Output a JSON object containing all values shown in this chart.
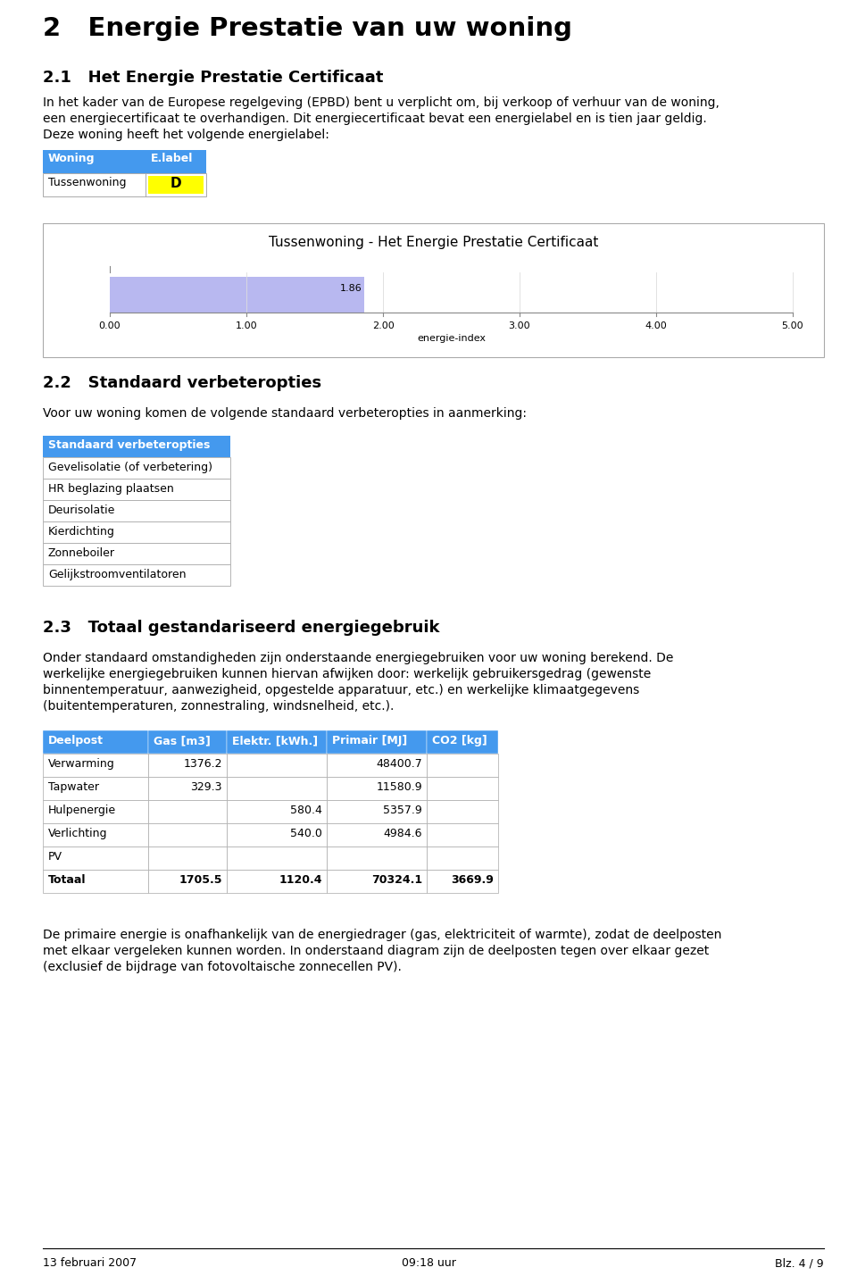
{
  "page_title": "2   Energie Prestatie van uw woning",
  "section1_title": "2.1   Het Energie Prestatie Certificaat",
  "section1_body": "In het kader van de Europese regelgeving (EPBD) bent u verplicht om, bij verkoop of verhuur van de woning,\neen energiecertificaat te overhandigen. Dit energiecertificaat bevat een energielabel en is tien jaar geldig.\nDeze woning heeft het volgende energielabel:",
  "table1_col1_header": "Woning",
  "table1_col2_header": "E.label",
  "table1_row1_col1": "Tussenwoning",
  "table1_row1_col2": "D",
  "chart_title": "Tussenwoning - Het Energie Prestatie Certificaat",
  "bar_value": 1.86,
  "bar_color": "#b8b8f0",
  "xaxis_ticks": [
    0.0,
    1.0,
    2.0,
    3.0,
    4.0,
    5.0
  ],
  "xaxis_label": "energie-index",
  "section2_title": "2.2   Standaard verbeteropties",
  "section2_body": "Voor uw woning komen de volgende standaard verbeteropties in aanmerking:",
  "verbeter_header": "Standaard verbeteropties",
  "verbeter_rows": [
    "Gevelisolatie (of verbetering)",
    "HR beglazing plaatsen",
    "Deurisolatie",
    "Kierdichting",
    "Zonneboiler",
    "Gelijkstroomventilatoren"
  ],
  "section3_title": "2.3   Totaal gestandariseerd energiegebruik",
  "section3_body1_line1": "Onder standaard omstandigheden zijn onderstaande energiegebruiken voor uw woning berekend. De",
  "section3_body1_line2": "werkelijke energiegebruiken kunnen hiervan afwijken door: werkelijk gebruikersgedrag (gewenste",
  "section3_body1_line3": "binnentemperatuur, aanwezigheid, opgestelde apparatuur, etc.) en werkelijke klimaatgegevens",
  "section3_body1_line4": "(buitentemperaturen, zonnestraling, windsnelheid, etc.).",
  "energy_table_headers": [
    "Deelpost",
    "Gas [m3]",
    "Elektr. [kWh.]",
    "Primair [MJ]",
    "CO2 [kg]"
  ],
  "energy_table_rows": [
    [
      "Verwarming",
      "1376.2",
      "",
      "48400.7",
      ""
    ],
    [
      "Tapwater",
      "329.3",
      "",
      "11580.9",
      ""
    ],
    [
      "Hulpenergie",
      "",
      "580.4",
      "5357.9",
      ""
    ],
    [
      "Verlichting",
      "",
      "540.0",
      "4984.6",
      ""
    ],
    [
      "PV",
      "",
      "",
      "",
      ""
    ]
  ],
  "energy_table_total": [
    "Totaal",
    "1705.5",
    "1120.4",
    "70324.1",
    "3669.9"
  ],
  "section3_body2_line1": "De primaire energie is onafhankelijk van de energiedrager (gas, elektriciteit of warmte), zodat de deelposten",
  "section3_body2_line2": "met elkaar vergeleken kunnen worden. In onderstaand diagram zijn de deelposten tegen over elkaar gezet",
  "section3_body2_line3": "(exclusief de bijdrage van fotovoltaische zonnecellen PV).",
  "footer_date": "13 februari 2007",
  "footer_time": "09:18 uur",
  "footer_page": "Blz. 4 / 9",
  "header_color": "#4499ee",
  "label_yellow": "#ffff00",
  "bg_color": "#ffffff",
  "border_color": "#aaaaaa",
  "text_color": "#000000"
}
